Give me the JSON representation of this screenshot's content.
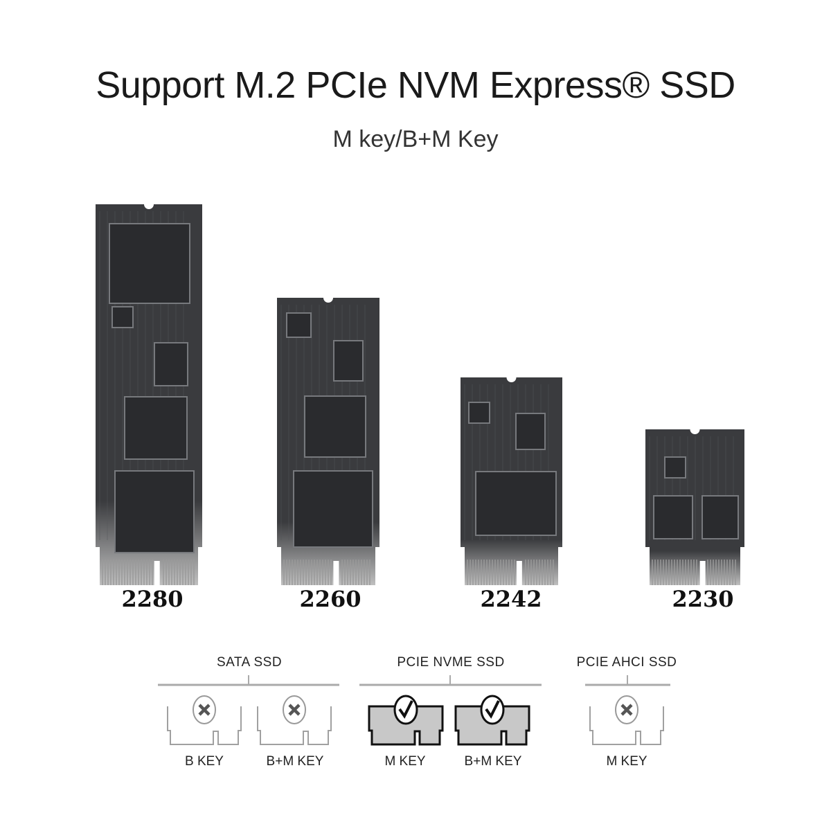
{
  "header": {
    "title": "Support M.2 PCIe NVM Express® SSD",
    "subtitle": "M key/B+M Key"
  },
  "form_factors": [
    {
      "label": "2280"
    },
    {
      "label": "2260"
    },
    {
      "label": "2242"
    },
    {
      "label": "2230"
    }
  ],
  "compatibility": {
    "groups": [
      {
        "label": "SATA SSD",
        "keys": [
          {
            "label": "B KEY",
            "supported": false
          },
          {
            "label": "B+M KEY",
            "supported": false
          }
        ]
      },
      {
        "label": "PCIE NVME SSD",
        "keys": [
          {
            "label": "M KEY",
            "supported": true
          },
          {
            "label": "B+M KEY",
            "supported": true
          }
        ]
      },
      {
        "label": "PCIE AHCI SSD",
        "keys": [
          {
            "label": "M KEY",
            "supported": false
          }
        ]
      }
    ],
    "icons": {
      "supported": "check-icon",
      "unsupported": "x-icon"
    }
  },
  "colors": {
    "board": "#3a3b3e",
    "chip": "#2a2b2e",
    "supported_fill": "#c8c8c8",
    "unsupported_stroke": "#a0a0a0"
  }
}
